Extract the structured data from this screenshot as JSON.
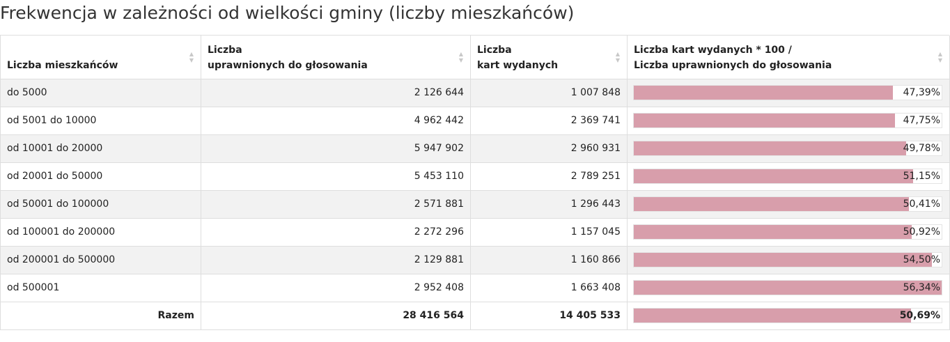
{
  "title": "Frekwencja w zależności od wielkości gminy (liczby mieszkańców)",
  "columns": [
    {
      "line1": "",
      "line2": "Liczba mieszkańców"
    },
    {
      "line1": "Liczba",
      "line2": "uprawnionych do głosowania"
    },
    {
      "line1": "Liczba",
      "line2": "kart wydanych"
    },
    {
      "line1": "Liczba kart wydanych * 100 /",
      "line2": "Liczba uprawnionych do głosowania"
    }
  ],
  "bar_color": "#d89eab",
  "rows": [
    {
      "label": "do 5000",
      "eligible": "2 126 644",
      "cards": "1 007 848",
      "pct_text": "47,39%",
      "pct": 47.39
    },
    {
      "label": "od 5001 do 10000",
      "eligible": "4 962 442",
      "cards": "2 369 741",
      "pct_text": "47,75%",
      "pct": 47.75
    },
    {
      "label": "od 10001 do 20000",
      "eligible": "5 947 902",
      "cards": "2 960 931",
      "pct_text": "49,78%",
      "pct": 49.78
    },
    {
      "label": "od 20001 do 50000",
      "eligible": "5 453 110",
      "cards": "2 789 251",
      "pct_text": "51,15%",
      "pct": 51.15
    },
    {
      "label": "od 50001 do 100000",
      "eligible": "2 571 881",
      "cards": "1 296 443",
      "pct_text": "50,41%",
      "pct": 50.41
    },
    {
      "label": "od 100001 do 200000",
      "eligible": "2 272 296",
      "cards": "1 157 045",
      "pct_text": "50,92%",
      "pct": 50.92
    },
    {
      "label": "od 200001 do 500000",
      "eligible": "2 129 881",
      "cards": "1 160 866",
      "pct_text": "54,50%",
      "pct": 54.5
    },
    {
      "label": "od 500001",
      "eligible": "2 952 408",
      "cards": "1 663 408",
      "pct_text": "56,34%",
      "pct": 56.34
    }
  ],
  "total": {
    "label": "Razem",
    "eligible": "28 416 564",
    "cards": "14 405 533",
    "pct_text": "50,69%",
    "pct": 50.69
  },
  "bar_scale_max": 56.34
}
